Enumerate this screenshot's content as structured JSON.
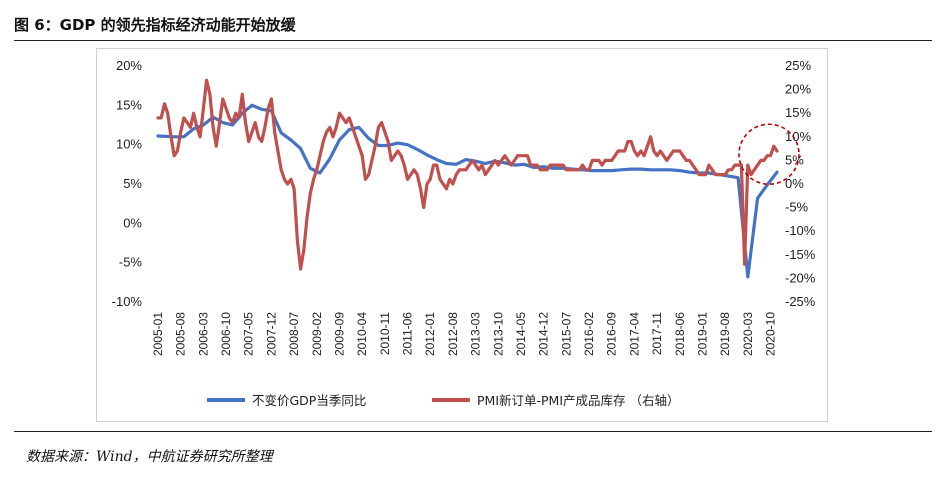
{
  "figure": {
    "title": "图 6：GDP 的领先指标经济动能开始放缓",
    "source": "数据来源：Wind，中航证券研究所整理"
  },
  "colors": {
    "gdp": "#4472C4",
    "pmi": "#C0504D",
    "highlight": "#C00000"
  },
  "chart_data": {
    "type": "line",
    "title": "",
    "xlabel": "",
    "ylabel": "",
    "x_ticks": [
      "2005-01",
      "2005-08",
      "2006-03",
      "2006-10",
      "2007-05",
      "2007-12",
      "2008-07",
      "2009-02",
      "2009-09",
      "2010-04",
      "2010-11",
      "2011-06",
      "2012-01",
      "2012-08",
      "2013-03",
      "2013-10",
      "2014-05",
      "2014-12",
      "2015-07",
      "2016-02",
      "2016-09",
      "2017-04",
      "2017-11",
      "2018-06",
      "2019-01",
      "2019-08",
      "2020-03",
      "2020-10"
    ],
    "y_left": {
      "ticks": [
        "20%",
        "15%",
        "10%",
        "5%",
        "0%",
        "-5%",
        "-10%"
      ],
      "ylim": [
        -10,
        20
      ]
    },
    "y_right": {
      "ticks": [
        "25%",
        "20%",
        "15%",
        "10%",
        "5%",
        "0%",
        "-5%",
        "-10%",
        "-15%",
        "-20%",
        "-25%"
      ],
      "ylim": [
        -25,
        25
      ],
      "label": "右轴"
    },
    "series": [
      {
        "name": "不变价GDP当季同比",
        "axis": "left",
        "points": [
          [
            "2005-01",
            11.1
          ],
          [
            "2005-06",
            11.0
          ],
          [
            "2005-09",
            11.0
          ],
          [
            "2005-12",
            12.0
          ],
          [
            "2006-03",
            12.5
          ],
          [
            "2006-06",
            13.5
          ],
          [
            "2006-09",
            12.8
          ],
          [
            "2006-12",
            12.5
          ],
          [
            "2007-03",
            14.0
          ],
          [
            "2007-06",
            15.0
          ],
          [
            "2007-09",
            14.5
          ],
          [
            "2007-12",
            14.3
          ],
          [
            "2008-03",
            11.5
          ],
          [
            "2008-06",
            10.6
          ],
          [
            "2008-09",
            9.5
          ],
          [
            "2008-12",
            7.0
          ],
          [
            "2009-03",
            6.4
          ],
          [
            "2009-06",
            8.2
          ],
          [
            "2009-09",
            10.6
          ],
          [
            "2009-12",
            11.9
          ],
          [
            "2010-03",
            12.2
          ],
          [
            "2010-06",
            10.8
          ],
          [
            "2010-09",
            9.9
          ],
          [
            "2010-12",
            9.9
          ],
          [
            "2011-03",
            10.2
          ],
          [
            "2011-06",
            10.0
          ],
          [
            "2011-09",
            9.4
          ],
          [
            "2011-12",
            8.7
          ],
          [
            "2012-03",
            8.1
          ],
          [
            "2012-06",
            7.6
          ],
          [
            "2012-09",
            7.5
          ],
          [
            "2012-12",
            8.1
          ],
          [
            "2013-03",
            7.9
          ],
          [
            "2013-06",
            7.6
          ],
          [
            "2013-09",
            7.9
          ],
          [
            "2013-12",
            7.7
          ],
          [
            "2014-03",
            7.4
          ],
          [
            "2014-06",
            7.5
          ],
          [
            "2014-09",
            7.1
          ],
          [
            "2014-12",
            7.2
          ],
          [
            "2015-03",
            7.0
          ],
          [
            "2015-06",
            7.0
          ],
          [
            "2015-09",
            6.9
          ],
          [
            "2015-12",
            6.8
          ],
          [
            "2016-03",
            6.7
          ],
          [
            "2016-06",
            6.7
          ],
          [
            "2016-09",
            6.7
          ],
          [
            "2016-12",
            6.8
          ],
          [
            "2017-03",
            6.9
          ],
          [
            "2017-06",
            6.9
          ],
          [
            "2017-09",
            6.8
          ],
          [
            "2017-12",
            6.8
          ],
          [
            "2018-03",
            6.8
          ],
          [
            "2018-06",
            6.7
          ],
          [
            "2018-09",
            6.5
          ],
          [
            "2018-12",
            6.4
          ],
          [
            "2019-03",
            6.4
          ],
          [
            "2019-06",
            6.2
          ],
          [
            "2019-09",
            6.0
          ],
          [
            "2019-12",
            5.8
          ],
          [
            "2020-03",
            -6.8
          ],
          [
            "2020-06",
            3.2
          ],
          [
            "2020-09",
            4.9
          ],
          [
            "2020-12",
            6.5
          ]
        ]
      },
      {
        "name": "PMI新订单-PMI产成品库存 （右轴）",
        "axis": "right",
        "points": [
          [
            "2005-01",
            14
          ],
          [
            "2005-02",
            14
          ],
          [
            "2005-03",
            17
          ],
          [
            "2005-04",
            15
          ],
          [
            "2005-05",
            10
          ],
          [
            "2005-06",
            6
          ],
          [
            "2005-07",
            7
          ],
          [
            "2005-08",
            11
          ],
          [
            "2005-09",
            14
          ],
          [
            "2005-10",
            13
          ],
          [
            "2005-11",
            12
          ],
          [
            "2005-12",
            15
          ],
          [
            "2006-01",
            12
          ],
          [
            "2006-02",
            10
          ],
          [
            "2006-03",
            16
          ],
          [
            "2006-04",
            22
          ],
          [
            "2006-05",
            19
          ],
          [
            "2006-06",
            12
          ],
          [
            "2006-07",
            8
          ],
          [
            "2006-08",
            13
          ],
          [
            "2006-09",
            18
          ],
          [
            "2006-10",
            16
          ],
          [
            "2006-11",
            14
          ],
          [
            "2006-12",
            13
          ],
          [
            "2007-01",
            15
          ],
          [
            "2007-02",
            14
          ],
          [
            "2007-03",
            19
          ],
          [
            "2007-04",
            13
          ],
          [
            "2007-05",
            9
          ],
          [
            "2007-06",
            11
          ],
          [
            "2007-07",
            13
          ],
          [
            "2007-08",
            10
          ],
          [
            "2007-09",
            9
          ],
          [
            "2007-10",
            12
          ],
          [
            "2007-11",
            16
          ],
          [
            "2007-12",
            18
          ],
          [
            "2008-01",
            11
          ],
          [
            "2008-02",
            7
          ],
          [
            "2008-03",
            3
          ],
          [
            "2008-04",
            1
          ],
          [
            "2008-05",
            0
          ],
          [
            "2008-06",
            1
          ],
          [
            "2008-07",
            -1
          ],
          [
            "2008-08",
            -12
          ],
          [
            "2008-09",
            -18
          ],
          [
            "2008-10",
            -14
          ],
          [
            "2008-11",
            -7
          ],
          [
            "2008-12",
            -2
          ],
          [
            "2009-01",
            1
          ],
          [
            "2009-02",
            3
          ],
          [
            "2009-03",
            6
          ],
          [
            "2009-04",
            9
          ],
          [
            "2009-05",
            11
          ],
          [
            "2009-06",
            12
          ],
          [
            "2009-07",
            10
          ],
          [
            "2009-08",
            12
          ],
          [
            "2009-09",
            15
          ],
          [
            "2009-10",
            14
          ],
          [
            "2009-11",
            13
          ],
          [
            "2009-12",
            14
          ],
          [
            "2010-01",
            12
          ],
          [
            "2010-02",
            10
          ],
          [
            "2010-03",
            8
          ],
          [
            "2010-04",
            6
          ],
          [
            "2010-05",
            1
          ],
          [
            "2010-06",
            2
          ],
          [
            "2010-07",
            5
          ],
          [
            "2010-08",
            8
          ],
          [
            "2010-09",
            12
          ],
          [
            "2010-10",
            13
          ],
          [
            "2010-11",
            11
          ],
          [
            "2010-12",
            9
          ],
          [
            "2011-01",
            5
          ],
          [
            "2011-02",
            6
          ],
          [
            "2011-03",
            7
          ],
          [
            "2011-04",
            6
          ],
          [
            "2011-05",
            4
          ],
          [
            "2011-06",
            1
          ],
          [
            "2011-07",
            2
          ],
          [
            "2011-08",
            3
          ],
          [
            "2011-09",
            2
          ],
          [
            "2011-10",
            -1
          ],
          [
            "2011-11",
            -5
          ],
          [
            "2011-12",
            0
          ],
          [
            "2012-01",
            1
          ],
          [
            "2012-02",
            4
          ],
          [
            "2012-03",
            4
          ],
          [
            "2012-04",
            1
          ],
          [
            "2012-05",
            0
          ],
          [
            "2012-06",
            -1
          ],
          [
            "2012-07",
            1
          ],
          [
            "2012-08",
            0
          ],
          [
            "2012-09",
            2
          ],
          [
            "2012-10",
            3
          ],
          [
            "2012-11",
            3
          ],
          [
            "2012-12",
            3
          ],
          [
            "2013-01",
            4
          ],
          [
            "2013-02",
            5
          ],
          [
            "2013-03",
            4
          ],
          [
            "2013-04",
            3
          ],
          [
            "2013-05",
            4
          ],
          [
            "2013-06",
            2
          ],
          [
            "2013-07",
            3
          ],
          [
            "2013-08",
            4
          ],
          [
            "2013-09",
            5
          ],
          [
            "2013-10",
            4
          ],
          [
            "2013-11",
            5
          ],
          [
            "2013-12",
            6
          ],
          [
            "2014-01",
            5
          ],
          [
            "2014-02",
            4
          ],
          [
            "2014-03",
            5
          ],
          [
            "2014-04",
            6
          ],
          [
            "2014-05",
            6
          ],
          [
            "2014-06",
            6
          ],
          [
            "2014-07",
            6
          ],
          [
            "2014-08",
            4
          ],
          [
            "2014-09",
            4
          ],
          [
            "2014-10",
            4
          ],
          [
            "2014-11",
            3
          ],
          [
            "2014-12",
            3
          ],
          [
            "2015-01",
            3
          ],
          [
            "2015-02",
            4
          ],
          [
            "2015-03",
            4
          ],
          [
            "2015-04",
            4
          ],
          [
            "2015-05",
            4
          ],
          [
            "2015-06",
            4
          ],
          [
            "2015-07",
            3
          ],
          [
            "2015-08",
            3
          ],
          [
            "2015-09",
            3
          ],
          [
            "2015-10",
            3
          ],
          [
            "2015-11",
            3
          ],
          [
            "2015-12",
            4
          ],
          [
            "2016-01",
            3
          ],
          [
            "2016-02",
            3
          ],
          [
            "2016-03",
            5
          ],
          [
            "2016-04",
            5
          ],
          [
            "2016-05",
            5
          ],
          [
            "2016-06",
            4
          ],
          [
            "2016-07",
            5
          ],
          [
            "2016-08",
            5
          ],
          [
            "2016-09",
            5
          ],
          [
            "2016-10",
            6
          ],
          [
            "2016-11",
            7
          ],
          [
            "2016-12",
            7
          ],
          [
            "2017-01",
            7
          ],
          [
            "2017-02",
            9
          ],
          [
            "2017-03",
            9
          ],
          [
            "2017-04",
            7
          ],
          [
            "2017-05",
            6
          ],
          [
            "2017-06",
            7
          ],
          [
            "2017-07",
            6
          ],
          [
            "2017-08",
            8
          ],
          [
            "2017-09",
            10
          ],
          [
            "2017-10",
            7
          ],
          [
            "2017-11",
            6
          ],
          [
            "2017-12",
            7
          ],
          [
            "2018-01",
            6
          ],
          [
            "2018-02",
            5
          ],
          [
            "2018-03",
            6
          ],
          [
            "2018-04",
            7
          ],
          [
            "2018-05",
            7
          ],
          [
            "2018-06",
            7
          ],
          [
            "2018-07",
            6
          ],
          [
            "2018-08",
            5
          ],
          [
            "2018-09",
            5
          ],
          [
            "2018-10",
            4
          ],
          [
            "2018-11",
            3
          ],
          [
            "2018-12",
            2
          ],
          [
            "2019-01",
            2
          ],
          [
            "2019-02",
            2
          ],
          [
            "2019-03",
            4
          ],
          [
            "2019-04",
            3
          ],
          [
            "2019-05",
            2
          ],
          [
            "2019-06",
            2
          ],
          [
            "2019-07",
            2
          ],
          [
            "2019-08",
            2
          ],
          [
            "2019-09",
            3
          ],
          [
            "2019-10",
            3
          ],
          [
            "2019-11",
            4
          ],
          [
            "2019-12",
            4
          ],
          [
            "2020-01",
            4
          ],
          [
            "2020-02",
            -17
          ],
          [
            "2020-03",
            4
          ],
          [
            "2020-04",
            2
          ],
          [
            "2020-05",
            3
          ],
          [
            "2020-06",
            4
          ],
          [
            "2020-07",
            5
          ],
          [
            "2020-08",
            5
          ],
          [
            "2020-09",
            6
          ],
          [
            "2020-10",
            6
          ],
          [
            "2020-11",
            8
          ],
          [
            "2020-12",
            7
          ]
        ]
      }
    ],
    "legend_position": "bottom",
    "annotations": [
      {
        "type": "dashed-circle",
        "center": [
          "2020-12",
          8
        ],
        "note": "highlight recent slowdown"
      }
    ]
  }
}
